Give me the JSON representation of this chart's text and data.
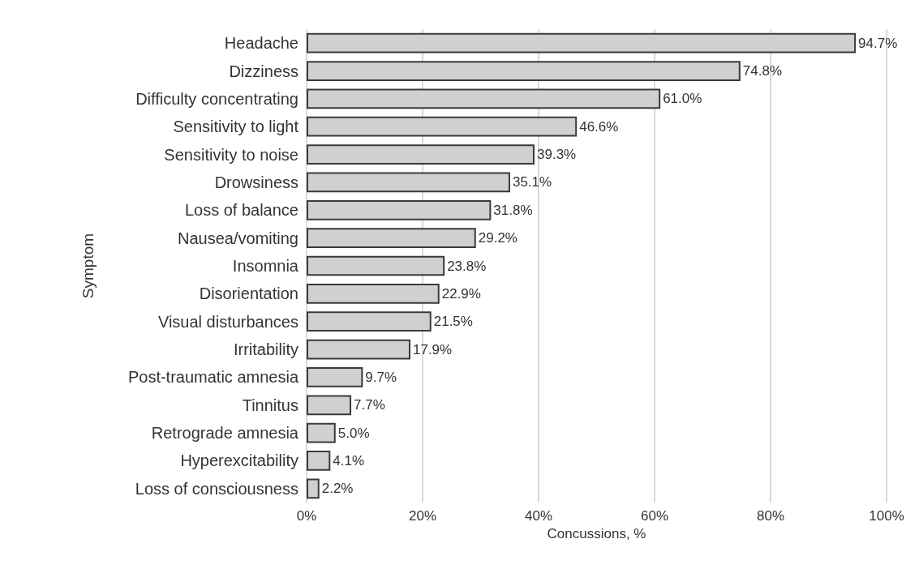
{
  "chart_data": {
    "type": "bar",
    "orientation": "horizontal",
    "xlabel": "Concussions, %",
    "ylabel": "Symptom",
    "categories": [
      "Headache",
      "Dizziness",
      "Difficulty concentrating",
      "Sensitivity to light",
      "Sensitivity to noise",
      "Drowsiness",
      "Loss of balance",
      "Nausea/vomiting",
      "Insomnia",
      "Disorientation",
      "Visual disturbances",
      "Irritability",
      "Post-traumatic amnesia",
      "Tinnitus",
      "Retrograde amnesia",
      "Hyperexcitability",
      "Loss of consciousness"
    ],
    "values": [
      94.7,
      74.8,
      61.0,
      46.6,
      39.3,
      35.1,
      31.8,
      29.2,
      23.8,
      22.9,
      21.5,
      17.9,
      9.7,
      7.7,
      5.0,
      4.1,
      2.2
    ],
    "value_labels": [
      "94.7%",
      "74.8%",
      "61.0%",
      "46.6%",
      "39.3%",
      "35.1%",
      "31.8%",
      "29.2%",
      "23.8%",
      "22.9%",
      "21.5%",
      "17.9%",
      "9.7%",
      "7.7%",
      "5.0%",
      "4.1%",
      "2.2%"
    ],
    "color": "#d0d0d0",
    "xlim": [
      0,
      100
    ],
    "xticks": [
      {
        "value": 0,
        "label": "0%"
      },
      {
        "value": 20,
        "label": "20%"
      },
      {
        "value": 40,
        "label": "40%"
      },
      {
        "value": 60,
        "label": "60%"
      },
      {
        "value": 80,
        "label": "80%"
      },
      {
        "value": 100,
        "label": "100%"
      }
    ],
    "grid": "x"
  }
}
